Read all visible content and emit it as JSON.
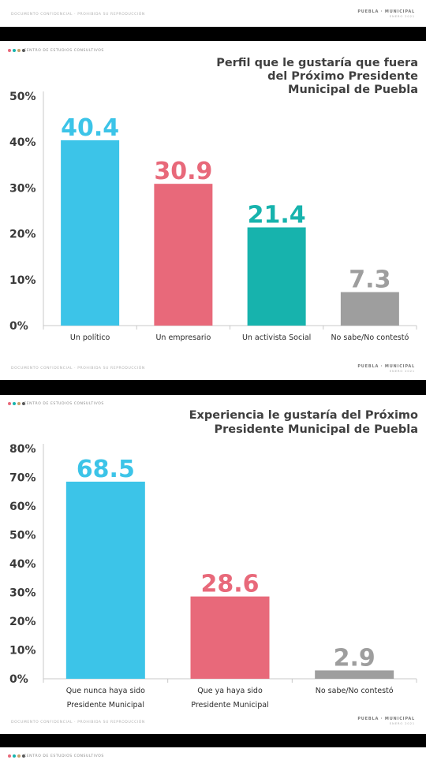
{
  "header_text": {
    "confidential": "DOCUMENTO CONFIDENCIAL · PROHIBIDA SU REPRODUCCIÓN",
    "center": "CENTRO DE ESTUDIOS CONSULTIVOS",
    "brand": "PUEBLA · MUNICIPAL",
    "brand_sub": "ENERO 2021"
  },
  "colors": {
    "blue": "#3cc4e8",
    "red": "#e8697a",
    "teal": "#17b3ad",
    "gray": "#9e9e9e",
    "dot1": "#e8697a",
    "dot2": "#17b3ad",
    "dot3": "#c6a26a",
    "dot4": "#555555"
  },
  "chart_data": [
    {
      "type": "bar",
      "title": "Perfil que le gustaría que fuera del Próximo Presidente Municipal de Puebla",
      "title_lines": [
        "Perfil que le gustaría que fuera",
        "del Próximo Presidente",
        "Municipal de Puebla"
      ],
      "categories": [
        "Un político",
        "Un empresario",
        "Un activista Social",
        "No sabe/No contestó"
      ],
      "category_lines": [
        [
          "Un político"
        ],
        [
          "Un empresario"
        ],
        [
          "Un activista Social"
        ],
        [
          "No sabe/No contestó"
        ]
      ],
      "values": [
        40.4,
        30.9,
        21.4,
        7.3
      ],
      "value_labels": [
        "40.4",
        "30.9",
        "21.4",
        "7.3"
      ],
      "bar_colors": [
        "#3cc4e8",
        "#e8697a",
        "#17b3ad",
        "#9e9e9e"
      ],
      "yticks": [
        "0%",
        "10%",
        "20%",
        "30%",
        "40%",
        "50%"
      ],
      "ylim": [
        0,
        50
      ],
      "grid": false,
      "xlabel": "",
      "ylabel": ""
    },
    {
      "type": "bar",
      "title": "Experiencia le gustaría del Próximo Presidente Municipal de Puebla",
      "title_lines": [
        "Experiencia le gustaría del Próximo",
        "Presidente Municipal de Puebla"
      ],
      "categories": [
        "Que nunca haya sido Presidente Municipal",
        "Que ya haya sido Presidente Municipal",
        "No sabe/No contestó"
      ],
      "category_lines": [
        [
          "Que nunca haya sido",
          "Presidente Municipal"
        ],
        [
          "Que ya haya sido",
          "Presidente Municipal"
        ],
        [
          "No sabe/No contestó"
        ]
      ],
      "values": [
        68.5,
        28.6,
        2.9
      ],
      "value_labels": [
        "68.5",
        "28.6",
        "2.9"
      ],
      "bar_colors": [
        "#3cc4e8",
        "#e8697a",
        "#9e9e9e"
      ],
      "yticks": [
        "0%",
        "10%",
        "20%",
        "30%",
        "40%",
        "50%",
        "60%",
        "70%",
        "80%"
      ],
      "ylim": [
        0,
        80
      ],
      "grid": false,
      "xlabel": "",
      "ylabel": ""
    }
  ]
}
